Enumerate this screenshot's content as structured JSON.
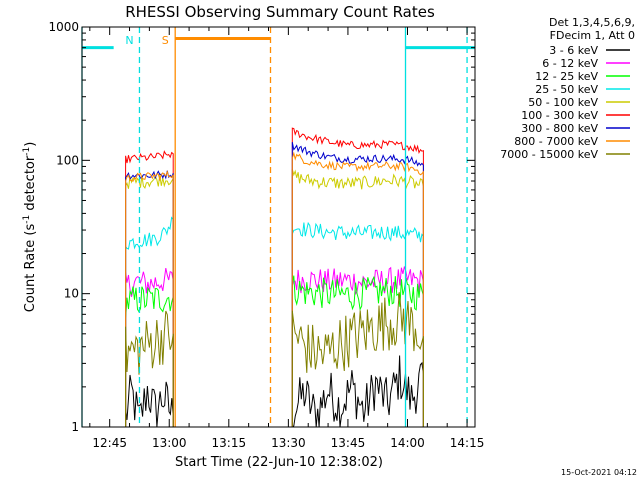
{
  "chart_data": {
    "type": "line",
    "title": "RHESSI Observing Summary Count Rates",
    "xlabel": "Start Time (22-Jun-10 12:38:02)",
    "ylabel_prefix": "Count Rate (s",
    "ylabel_sup1": "-1",
    "ylabel_mid": " detector",
    "ylabel_sup2": "-1",
    "ylabel_suffix": ")",
    "yscale": "log",
    "ylim": [
      1,
      1000
    ],
    "xlim_minutes": [
      38.03,
      137.0
    ],
    "x_ticks": [
      {
        "label": "12:45",
        "minutes": 45
      },
      {
        "label": "13:00",
        "minutes": 60
      },
      {
        "label": "13:15",
        "minutes": 75
      },
      {
        "label": "13:30",
        "minutes": 90
      },
      {
        "label": "13:45",
        "minutes": 105
      },
      {
        "label": "14:00",
        "minutes": 120
      },
      {
        "label": "14:15",
        "minutes": 135
      }
    ],
    "y_ticks": [
      {
        "label": "1",
        "value": 1
      },
      {
        "label": "10",
        "value": 10
      },
      {
        "label": "100",
        "value": 100
      },
      {
        "label": "1000",
        "value": 1000
      }
    ],
    "legend_header": [
      "Det 1,3,4,5,6,9,",
      "FDecim 1, Att 0"
    ],
    "series": [
      {
        "name": "3 - 6 keV",
        "color": "#000000",
        "segments": [
          [
            [
              49.0,
              1.2
            ],
            [
              50.5,
              1.8
            ],
            [
              52.5,
              1.1
            ],
            [
              54.5,
              1.9
            ],
            [
              56.5,
              1.3
            ],
            [
              58.5,
              1.7
            ],
            [
              61.0,
              1.2
            ]
          ],
          [
            [
              91.0,
              1.3
            ],
            [
              94.0,
              1.8
            ],
            [
              97.0,
              1.2
            ],
            [
              100.0,
              1.9
            ],
            [
              103.0,
              1.4
            ],
            [
              106.0,
              2.0
            ],
            [
              109.0,
              1.3
            ],
            [
              112.0,
              2.1
            ],
            [
              115.0,
              1.5
            ],
            [
              118.0,
              2.4
            ],
            [
              121.0,
              1.6
            ],
            [
              124.0,
              2.5
            ]
          ]
        ]
      },
      {
        "name": "6 - 12 keV",
        "color": "#ff00ff",
        "segments": [
          [
            [
              49.0,
              11.5
            ],
            [
              52.0,
              12.3
            ],
            [
              55.0,
              11.8
            ],
            [
              58.0,
              12.5
            ],
            [
              61.0,
              12.6
            ]
          ],
          [
            [
              91.0,
              12.5
            ],
            [
              95.0,
              12.8
            ],
            [
              100.0,
              12.3
            ],
            [
              105.0,
              12.6
            ],
            [
              110.0,
              12.1
            ],
            [
              115.0,
              12.5
            ],
            [
              120.0,
              12.8
            ],
            [
              124.0,
              12.3
            ]
          ]
        ]
      },
      {
        "name": "12 - 25 keV",
        "color": "#00ff00",
        "segments": [
          [
            [
              49.0,
              8.5
            ],
            [
              52.0,
              9.0
            ],
            [
              55.0,
              9.0
            ],
            [
              58.0,
              9.2
            ],
            [
              61.0,
              9.5
            ]
          ],
          [
            [
              91.0,
              11.0
            ],
            [
              95.0,
              10.2
            ],
            [
              100.0,
              10.0
            ],
            [
              105.0,
              9.8
            ],
            [
              110.0,
              10.2
            ],
            [
              115.0,
              10.5
            ],
            [
              120.0,
              10.0
            ],
            [
              124.0,
              9.7
            ]
          ]
        ]
      },
      {
        "name": "25 - 50 keV",
        "color": "#00e8e8",
        "segments": [
          [
            [
              49.0,
              24.0
            ],
            [
              52.0,
              25.0
            ],
            [
              55.0,
              25.5
            ],
            [
              57.0,
              26.5
            ],
            [
              59.0,
              29.0
            ],
            [
              61.0,
              36.0
            ]
          ],
          [
            [
              91.0,
              32.0
            ],
            [
              95.0,
              30.0
            ],
            [
              100.0,
              29.0
            ],
            [
              105.0,
              28.5
            ],
            [
              110.0,
              28.5
            ],
            [
              115.0,
              29.0
            ],
            [
              120.0,
              28.0
            ],
            [
              124.0,
              27.0
            ]
          ]
        ]
      },
      {
        "name": "50 - 100 keV",
        "color": "#cccc00",
        "segments": [
          [
            [
              49.0,
              68.0
            ],
            [
              52.0,
              69.0
            ],
            [
              55.0,
              70.0
            ],
            [
              58.0,
              72.0
            ],
            [
              61.0,
              73.0
            ]
          ],
          [
            [
              91.0,
              77.0
            ],
            [
              95.0,
              71.0
            ],
            [
              100.0,
              68.0
            ],
            [
              105.0,
              67.0
            ],
            [
              110.0,
              68.0
            ],
            [
              115.0,
              71.0
            ],
            [
              120.0,
              69.0
            ],
            [
              124.0,
              64.0
            ]
          ]
        ]
      },
      {
        "name": "100 - 300 keV",
        "color": "#ff0000",
        "segments": [
          [
            [
              49.0,
              102.0
            ],
            [
              52.0,
              104.0
            ],
            [
              55.0,
              105.0
            ],
            [
              58.0,
              108.0
            ],
            [
              61.0,
              112.0
            ]
          ],
          [
            [
              91.0,
              165.0
            ],
            [
              95.0,
              150.0
            ],
            [
              100.0,
              138.0
            ],
            [
              105.0,
              130.0
            ],
            [
              110.0,
              130.0
            ],
            [
              115.0,
              132.0
            ],
            [
              120.0,
              128.0
            ],
            [
              124.0,
              118.0
            ]
          ]
        ]
      },
      {
        "name": "300 - 800 keV",
        "color": "#0000cc",
        "segments": [
          [
            [
              49.0,
              78.0
            ],
            [
              52.0,
              77.0
            ],
            [
              55.0,
              77.0
            ],
            [
              58.0,
              78.0
            ],
            [
              61.0,
              80.0
            ]
          ],
          [
            [
              91.0,
              130.0
            ],
            [
              95.0,
              116.0
            ],
            [
              100.0,
              106.0
            ],
            [
              105.0,
              102.0
            ],
            [
              110.0,
              103.0
            ],
            [
              115.0,
              103.0
            ],
            [
              120.0,
              101.0
            ],
            [
              124.0,
              92.0
            ]
          ]
        ]
      },
      {
        "name": "800 - 7000 keV",
        "color": "#ff8c00",
        "segments": [
          [
            [
              49.0,
              73.0
            ],
            [
              52.0,
              75.0
            ],
            [
              55.0,
              76.0
            ],
            [
              58.0,
              77.0
            ],
            [
              61.0,
              78.0
            ]
          ],
          [
            [
              91.0,
              110.0
            ],
            [
              95.0,
              98.0
            ],
            [
              100.0,
              92.0
            ],
            [
              105.0,
              89.0
            ],
            [
              110.0,
              90.0
            ],
            [
              115.0,
              91.0
            ],
            [
              120.0,
              89.0
            ],
            [
              124.0,
              82.0
            ]
          ]
        ]
      },
      {
        "name": "7000 - 15000 keV",
        "color": "#808000",
        "segments": [
          [
            [
              49.0,
              3.5
            ],
            [
              52.0,
              3.8
            ],
            [
              55.0,
              4.2
            ],
            [
              58.0,
              4.8
            ],
            [
              61.0,
              5.0
            ]
          ],
          [
            [
              91.0,
              5.2
            ],
            [
              95.0,
              3.8
            ],
            [
              99.0,
              3.5
            ],
            [
              103.0,
              4.2
            ],
            [
              107.0,
              4.8
            ],
            [
              111.0,
              5.5
            ],
            [
              115.0,
              6.2
            ],
            [
              119.0,
              6.5
            ],
            [
              122.0,
              5.6
            ],
            [
              124.0,
              4.8
            ]
          ]
        ]
      }
    ],
    "annotations": [
      {
        "type": "night",
        "color": "#00e0e0",
        "from_minutes": 38.03,
        "to_minutes": 124.0,
        "tops_minutes": [
          [
            38.03,
            46.0
          ],
          [
            119.5,
            137.0
          ]
        ],
        "level": 700
      },
      {
        "type": "vline",
        "color": "#00e0e0",
        "style": "solid",
        "minutes": 38.03
      },
      {
        "type": "vline",
        "color": "#00e0e0",
        "style": "dashed",
        "minutes": 52.5,
        "label": "N"
      },
      {
        "type": "vline",
        "color": "#ff8c00",
        "style": "solid",
        "minutes": 61.5,
        "label": "S"
      },
      {
        "type": "hline",
        "color": "#ff8c00",
        "from_minutes": 61.5,
        "to_minutes": 85.5,
        "level": 820
      },
      {
        "type": "vline",
        "color": "#ff8c00",
        "style": "dashed",
        "minutes": 85.5
      },
      {
        "type": "vline",
        "color": "#00e0e0",
        "style": "solid",
        "minutes": 119.5
      },
      {
        "type": "vline",
        "color": "#00e0e0",
        "style": "dashed",
        "minutes": 135.0
      }
    ]
  },
  "footer": {
    "timestamp": "15-Oct-2021 04:12"
  }
}
